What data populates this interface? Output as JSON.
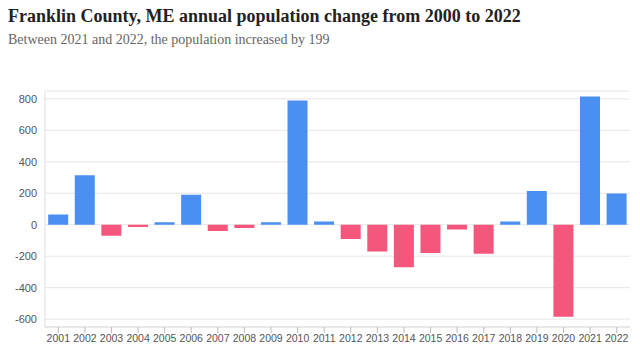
{
  "chart_data": {
    "type": "bar",
    "title": "Franklin County, ME annual population change from 2000 to 2022",
    "subtitle": "Between 2021 and 2022, the population increased by 199",
    "categories": [
      "2001",
      "2002",
      "2003",
      "2004",
      "2005",
      "2006",
      "2007",
      "2008",
      "2009",
      "2010",
      "2011",
      "2012",
      "2013",
      "2014",
      "2015",
      "2016",
      "2017",
      "2018",
      "2019",
      "2020",
      "2021",
      "2022"
    ],
    "values": [
      65,
      315,
      -70,
      -15,
      15,
      190,
      -40,
      -20,
      15,
      790,
      20,
      -90,
      -170,
      -270,
      -180,
      -30,
      -185,
      20,
      215,
      -585,
      815,
      199
    ],
    "colors": [
      "#4b8ff0",
      "#4b8ff0",
      "#f5567b",
      "#f5567b",
      "#4b8ff0",
      "#4b8ff0",
      "#f5567b",
      "#f5567b",
      "#4b8ff0",
      "#4b8ff0",
      "#4b8ff0",
      "#f5567b",
      "#f5567b",
      "#f5567b",
      "#f5567b",
      "#f5567b",
      "#f5567b",
      "#4b8ff0",
      "#4b8ff0",
      "#f5567b",
      "#4b8ff0",
      "#4b8ff0"
    ],
    "ylim": [
      -650,
      850
    ],
    "yticks": [
      -600,
      -400,
      -200,
      0,
      200,
      400,
      600,
      800
    ],
    "grid": true
  }
}
